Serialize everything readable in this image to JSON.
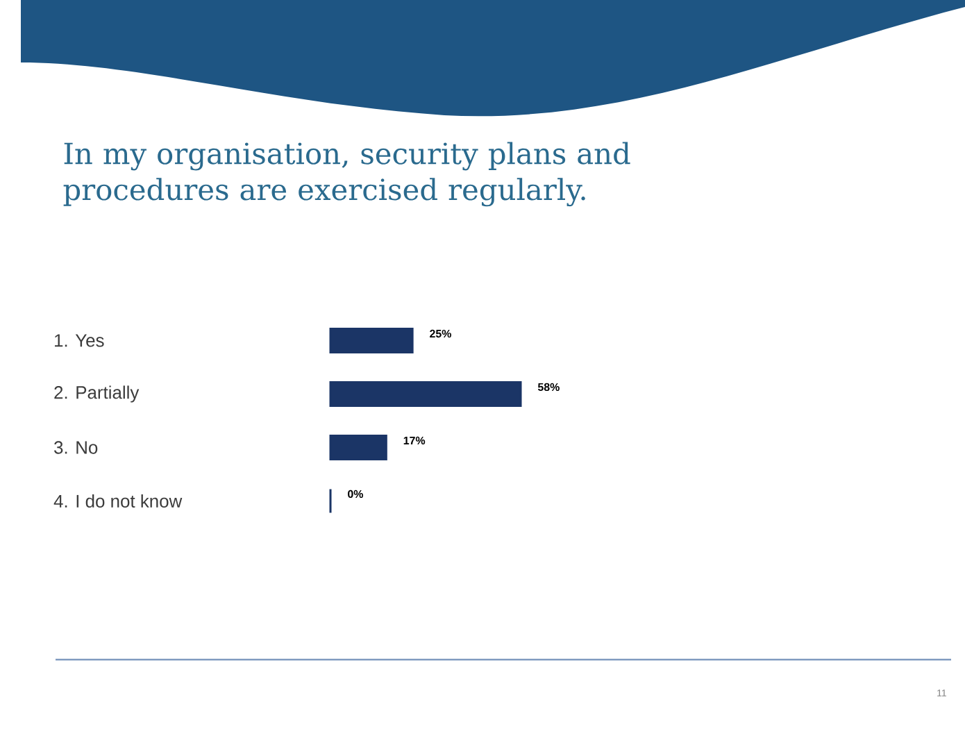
{
  "chart_data": {
    "type": "bar",
    "orientation": "horizontal",
    "title": "In my organisation, security plans and procedures are exercised regularly.",
    "categories": [
      "1.  Yes",
      "2.  Partially",
      "3.  No",
      "4.  I do not know"
    ],
    "values": [
      25,
      58,
      17,
      0
    ],
    "value_labels": [
      "25%",
      "58%",
      "17%",
      "0%"
    ],
    "color": "#1b3566",
    "annotations": [
      "11"
    ]
  }
}
